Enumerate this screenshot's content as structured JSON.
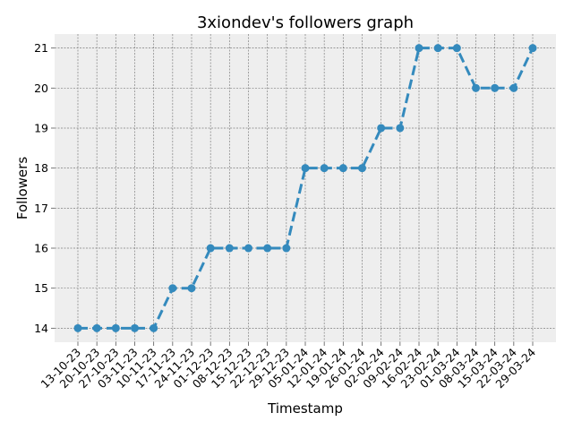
{
  "chart_data": {
    "type": "line",
    "title": "3xiondev's followers graph",
    "xlabel": "Timestamp",
    "ylabel": "Followers",
    "categories": [
      "13-10-23",
      "20-10-23",
      "27-10-23",
      "03-11-23",
      "10-11-23",
      "17-11-23",
      "24-11-23",
      "01-12-23",
      "08-12-23",
      "15-12-23",
      "22-12-23",
      "29-12-23",
      "05-01-24",
      "12-01-24",
      "19-01-24",
      "26-01-24",
      "02-02-24",
      "09-02-24",
      "16-02-24",
      "23-02-24",
      "01-03-24",
      "08-03-24",
      "15-03-24",
      "22-03-24",
      "29-03-24"
    ],
    "series": [
      {
        "values": [
          14,
          14,
          14,
          14,
          14,
          15,
          15,
          16,
          16,
          16,
          16,
          16,
          18,
          18,
          18,
          18,
          19,
          19,
          21,
          21,
          21,
          20,
          20,
          20,
          21
        ]
      }
    ],
    "yticks": [
      14,
      15,
      16,
      17,
      18,
      19,
      20,
      21
    ],
    "ylim": [
      13.65,
      21.35
    ],
    "grid": true,
    "style": {
      "line_color": "#348abd",
      "marker": "circle",
      "line_style": "dashed",
      "background": "#eeeeee",
      "grid_color": "#7f7f7f"
    }
  }
}
